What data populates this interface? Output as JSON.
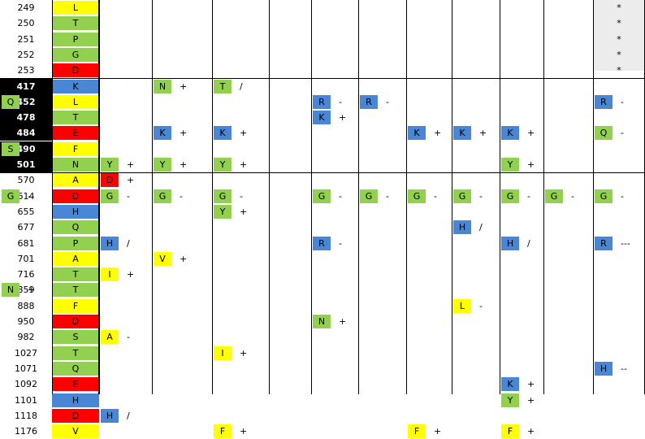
{
  "colors": {
    "hydrophobic_yellow": "#ffff00",
    "polar_green": "#92d050",
    "positive_blue": "#4a86d6",
    "negative_red": "#ff0000",
    "highlight_black": "#000000"
  },
  "rows": [
    {
      "pos": "249",
      "bold": false,
      "ref": {
        "aa": "L",
        "color": "yellow"
      },
      "cells": [],
      "star": "*"
    },
    {
      "pos": "250",
      "bold": false,
      "ref": {
        "aa": "T",
        "color": "green"
      },
      "cells": [],
      "star": "*"
    },
    {
      "pos": "251",
      "bold": false,
      "ref": {
        "aa": "P",
        "color": "green"
      },
      "cells": [],
      "star": "*"
    },
    {
      "pos": "252",
      "bold": false,
      "ref": {
        "aa": "G",
        "color": "green"
      },
      "cells": [],
      "star": "*"
    },
    {
      "pos": "253",
      "bold": false,
      "ref": {
        "aa": "D",
        "color": "red"
      },
      "cells": [],
      "star": "*"
    },
    {
      "pos": "417",
      "bold": true,
      "ref": {
        "aa": "K",
        "color": "blue"
      },
      "cells": [
        {
          "col": 1,
          "aa": "N",
          "color": "green",
          "sym": "+"
        },
        {
          "col": 2,
          "aa": "T",
          "color": "green",
          "sym": "/"
        }
      ]
    },
    {
      "pos": "452",
      "bold": true,
      "ref": {
        "aa": "L",
        "color": "yellow"
      },
      "cells": [
        {
          "col": 4,
          "aa": "R",
          "color": "blue",
          "sym": "-"
        },
        {
          "col": 5,
          "aa": "R",
          "color": "blue",
          "sym": "-"
        },
        {
          "col": 10,
          "aa": "R",
          "color": "blue",
          "sym": "-"
        },
        {
          "col": 11,
          "aa": "Q",
          "color": "green",
          "sym": "-"
        }
      ]
    },
    {
      "pos": "478",
      "bold": true,
      "ref": {
        "aa": "T",
        "color": "green"
      },
      "cells": [
        {
          "col": 4,
          "aa": "K",
          "color": "blue",
          "sym": "+"
        }
      ]
    },
    {
      "pos": "484",
      "bold": true,
      "ref": {
        "aa": "E",
        "color": "red"
      },
      "cells": [
        {
          "col": 1,
          "aa": "K",
          "color": "blue",
          "sym": "+"
        },
        {
          "col": 2,
          "aa": "K",
          "color": "blue",
          "sym": "+"
        },
        {
          "col": 6,
          "aa": "K",
          "color": "blue",
          "sym": "+"
        },
        {
          "col": 7,
          "aa": "K",
          "color": "blue",
          "sym": "+"
        },
        {
          "col": 8,
          "aa": "K",
          "color": "blue",
          "sym": "+"
        },
        {
          "col": 10,
          "aa": "Q",
          "color": "green",
          "sym": "-"
        }
      ]
    },
    {
      "pos": "490",
      "bold": true,
      "ref": {
        "aa": "F",
        "color": "yellow"
      },
      "cells": [
        {
          "col": 11,
          "aa": "S",
          "color": "green",
          "sym": "-"
        }
      ]
    },
    {
      "pos": "501",
      "bold": true,
      "ref": {
        "aa": "N",
        "color": "green"
      },
      "cells": [
        {
          "col": 0,
          "aa": "Y",
          "color": "green",
          "sym": "+"
        },
        {
          "col": 1,
          "aa": "Y",
          "color": "green",
          "sym": "+"
        },
        {
          "col": 2,
          "aa": "Y",
          "color": "green",
          "sym": "+"
        },
        {
          "col": 8,
          "aa": "Y",
          "color": "green",
          "sym": "+"
        }
      ]
    },
    {
      "pos": "570",
      "bold": false,
      "ref": {
        "aa": "A",
        "color": "yellow"
      },
      "cells": [
        {
          "col": 0,
          "aa": "D",
          "color": "red",
          "sym": "+"
        }
      ]
    },
    {
      "pos": "614",
      "bold": false,
      "ref": {
        "aa": "D",
        "color": "red"
      },
      "cells": [
        {
          "col": 0,
          "aa": "G",
          "color": "green",
          "sym": "-"
        },
        {
          "col": 1,
          "aa": "G",
          "color": "green",
          "sym": "-"
        },
        {
          "col": 2,
          "aa": "G",
          "color": "green",
          "sym": "-"
        },
        {
          "col": 4,
          "aa": "G",
          "color": "green",
          "sym": "-"
        },
        {
          "col": 5,
          "aa": "G",
          "color": "green",
          "sym": "-"
        },
        {
          "col": 6,
          "aa": "G",
          "color": "green",
          "sym": "-"
        },
        {
          "col": 7,
          "aa": "G",
          "color": "green",
          "sym": "-"
        },
        {
          "col": 8,
          "aa": "G",
          "color": "green",
          "sym": "-"
        },
        {
          "col": 9,
          "aa": "G",
          "color": "green",
          "sym": "-"
        },
        {
          "col": 10,
          "aa": "G",
          "color": "green",
          "sym": "-"
        },
        {
          "col": 11,
          "aa": "G",
          "color": "green",
          "sym": "-"
        }
      ]
    },
    {
      "pos": "655",
      "bold": false,
      "ref": {
        "aa": "H",
        "color": "blue"
      },
      "cells": [
        {
          "col": 2,
          "aa": "Y",
          "color": "green",
          "sym": "+"
        }
      ]
    },
    {
      "pos": "677",
      "bold": false,
      "ref": {
        "aa": "Q",
        "color": "green"
      },
      "cells": [
        {
          "col": 7,
          "aa": "H",
          "color": "blue",
          "sym": "/"
        }
      ]
    },
    {
      "pos": "681",
      "bold": false,
      "ref": {
        "aa": "P",
        "color": "green"
      },
      "cells": [
        {
          "col": 0,
          "aa": "H",
          "color": "blue",
          "sym": "/"
        },
        {
          "col": 4,
          "aa": "R",
          "color": "blue",
          "sym": "-"
        },
        {
          "col": 8,
          "aa": "H",
          "color": "blue",
          "sym": "/"
        },
        {
          "col": 10,
          "aa": "R",
          "color": "blue",
          "sym": "---"
        }
      ]
    },
    {
      "pos": "701",
      "bold": false,
      "ref": {
        "aa": "A",
        "color": "yellow"
      },
      "cells": [
        {
          "col": 1,
          "aa": "V",
          "color": "yellow",
          "sym": "+"
        }
      ]
    },
    {
      "pos": "716",
      "bold": false,
      "ref": {
        "aa": "T",
        "color": "green"
      },
      "cells": [
        {
          "col": 0,
          "aa": "I",
          "color": "yellow",
          "sym": "+"
        }
      ]
    },
    {
      "pos": "859",
      "bold": false,
      "ref": {
        "aa": "T",
        "color": "green"
      },
      "cells": [
        {
          "col": 11,
          "aa": "N",
          "color": "green",
          "sym": "+"
        }
      ]
    },
    {
      "pos": "888",
      "bold": false,
      "ref": {
        "aa": "F",
        "color": "yellow"
      },
      "cells": [
        {
          "col": 7,
          "aa": "L",
          "color": "yellow",
          "sym": "-"
        }
      ]
    },
    {
      "pos": "950",
      "bold": false,
      "ref": {
        "aa": "D",
        "color": "red"
      },
      "cells": [
        {
          "col": 4,
          "aa": "N",
          "color": "green",
          "sym": "+"
        }
      ]
    },
    {
      "pos": "982",
      "bold": false,
      "ref": {
        "aa": "S",
        "color": "green"
      },
      "cells": [
        {
          "col": 0,
          "aa": "A",
          "color": "yellow",
          "sym": "-"
        }
      ]
    },
    {
      "pos": "1027",
      "bold": false,
      "ref": {
        "aa": "T",
        "color": "green"
      },
      "cells": [
        {
          "col": 2,
          "aa": "I",
          "color": "yellow",
          "sym": "+"
        }
      ]
    },
    {
      "pos": "1071",
      "bold": false,
      "ref": {
        "aa": "Q",
        "color": "green"
      },
      "cells": [
        {
          "col": 10,
          "aa": "H",
          "color": "blue",
          "sym": "--"
        }
      ]
    },
    {
      "pos": "1092",
      "bold": false,
      "ref": {
        "aa": "E",
        "color": "red"
      },
      "cells": [
        {
          "col": 8,
          "aa": "K",
          "color": "blue",
          "sym": "+"
        }
      ]
    },
    {
      "pos": "1101",
      "bold": false,
      "ref": {
        "aa": "H",
        "color": "blue"
      },
      "cells": [
        {
          "col": 8,
          "aa": "Y",
          "color": "green",
          "sym": "+"
        }
      ]
    },
    {
      "pos": "1118",
      "bold": false,
      "ref": {
        "aa": "D",
        "color": "red"
      },
      "cells": [
        {
          "col": 0,
          "aa": "H",
          "color": "blue",
          "sym": "/"
        }
      ]
    },
    {
      "pos": "1176",
      "bold": false,
      "ref": {
        "aa": "V",
        "color": "yellow"
      },
      "cells": [
        {
          "col": 2,
          "aa": "F",
          "color": "yellow",
          "sym": "+"
        },
        {
          "col": 6,
          "aa": "F",
          "color": "yellow",
          "sym": "+"
        },
        {
          "col": 8,
          "aa": "F",
          "color": "yellow",
          "sym": "+"
        }
      ]
    }
  ]
}
